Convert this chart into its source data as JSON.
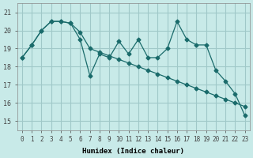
{
  "xlabel": "Humidex (Indice chaleur)",
  "background_color": "#c8eae8",
  "grid_color": "#a0c8c8",
  "line_color": "#1a6b6b",
  "x_ticks": [
    0,
    1,
    2,
    3,
    4,
    5,
    6,
    7,
    8,
    9,
    10,
    11,
    12,
    13,
    14,
    15,
    16,
    17,
    18,
    19,
    20,
    21,
    22,
    23
  ],
  "ylim": [
    14.5,
    21.5
  ],
  "yticks": [
    15,
    16,
    17,
    18,
    19,
    20,
    21
  ],
  "series": [
    [
      18.5,
      19.2,
      20.0,
      20.5,
      20.5,
      20.4,
      19.5,
      17.5,
      18.7,
      18.5,
      19.4,
      18.7,
      19.5,
      18.5,
      18.5,
      19.0,
      20.5,
      19.5,
      19.2,
      19.2,
      17.8,
      17.2,
      16.5,
      15.3
    ],
    [
      18.5,
      19.2,
      20.0,
      20.5,
      20.5,
      20.4,
      19.9,
      19.0,
      18.8,
      18.6,
      18.4,
      18.2,
      18.0,
      17.8,
      17.6,
      17.4,
      17.2,
      17.0,
      16.8,
      16.6,
      16.4,
      16.2,
      16.0,
      15.8
    ]
  ]
}
